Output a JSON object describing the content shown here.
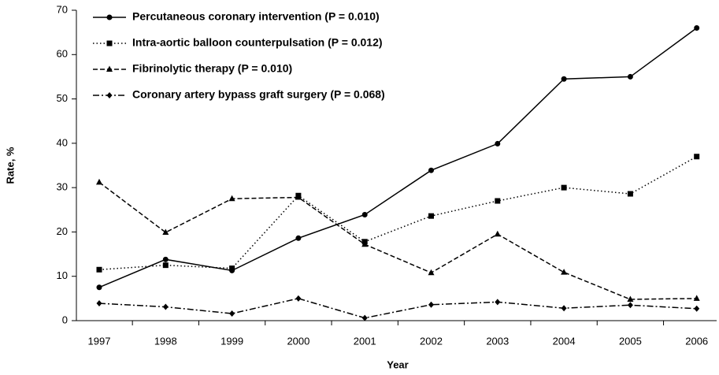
{
  "chart_data": {
    "type": "line",
    "x_label": "Year",
    "y_label": "Rate, %",
    "categories": [
      "1997",
      "1998",
      "1999",
      "2000",
      "2001",
      "2002",
      "2003",
      "2004",
      "2005",
      "2006"
    ],
    "ylim": [
      0,
      70
    ],
    "yticks": [
      0,
      10,
      20,
      30,
      40,
      50,
      60,
      70
    ],
    "series": [
      {
        "name": "Percutaneous coronary intervention (P = 0.010)",
        "color": "#000000",
        "marker": "circle",
        "dash": "solid",
        "values": [
          7.5,
          13.8,
          11.3,
          18.6,
          23.9,
          33.9,
          39.9,
          54.5,
          55.0,
          66.0
        ]
      },
      {
        "name": "Intra-aortic balloon counterpulsation (P = 0.012)",
        "color": "#000000",
        "marker": "square",
        "dash": "dotted",
        "values": [
          11.5,
          12.5,
          11.8,
          28.2,
          17.8,
          23.6,
          27.0,
          30.0,
          28.6,
          37.0
        ]
      },
      {
        "name": "Fibrinolytic therapy (P = 0.010)",
        "color": "#000000",
        "marker": "triangle",
        "dash": "dashed",
        "values": [
          31.2,
          19.9,
          27.5,
          27.8,
          17.2,
          10.8,
          19.5,
          10.9,
          4.8,
          5.0
        ]
      },
      {
        "name": "Coronary artery bypass graft surgery (P = 0.068)",
        "color": "#000000",
        "marker": "diamond",
        "dash": "dashdot",
        "values": [
          3.9,
          3.1,
          1.6,
          5.0,
          0.6,
          3.6,
          4.2,
          2.8,
          3.5,
          2.7
        ]
      }
    ]
  }
}
